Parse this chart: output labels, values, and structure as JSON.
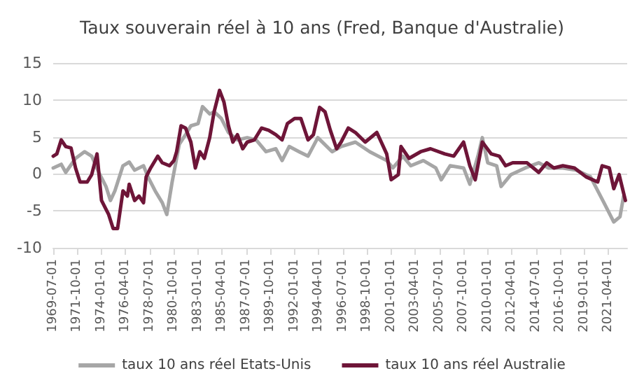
{
  "chart_data": {
    "type": "line",
    "title": "Taux souverain réel à 10 ans (Fred, Banque d'Australie)",
    "series": [
      {
        "name": "taux 10 ans réel Etats-Unis",
        "color": "#a6a6a6",
        "x": [
          "1969-07",
          "1970-04",
          "1970-09",
          "1971-08",
          "1972-06",
          "1973-02",
          "1973-10",
          "1974-06",
          "1974-11",
          "1975-04",
          "1976-01",
          "1976-08",
          "1977-02",
          "1977-12",
          "1978-05",
          "1979-01",
          "1979-09",
          "1980-02",
          "1980-08",
          "1981-04",
          "1981-11",
          "1982-05",
          "1983-01",
          "1983-06",
          "1984-02",
          "1984-07",
          "1985-03",
          "1985-11",
          "1986-09",
          "1987-08",
          "1988-06",
          "1989-05",
          "1990-04",
          "1990-11",
          "1991-07",
          "1992-06",
          "1993-04",
          "1994-03",
          "1995-07",
          "1996-05",
          "1997-09",
          "1999-01",
          "2000-08",
          "2001-03",
          "2002-02",
          "2002-11",
          "2004-01",
          "2005-03",
          "2005-09",
          "2006-07",
          "2007-10",
          "2008-05",
          "2009-02",
          "2009-07",
          "2010-01",
          "2010-11",
          "2011-04",
          "2012-03",
          "2013-07",
          "2014-10",
          "2015-09",
          "2017-01",
          "2018-04",
          "2019-08",
          "2020-11",
          "2021-10",
          "2022-05",
          "2022-09"
        ],
        "values": [
          0.8,
          1.3,
          0.2,
          2.1,
          3.0,
          2.4,
          0.2,
          -1.7,
          -3.6,
          -2.3,
          1.1,
          1.6,
          0.5,
          1.1,
          -0.4,
          -2.3,
          -3.9,
          -5.5,
          -1.1,
          4.0,
          5.3,
          6.5,
          6.8,
          9.1,
          8.1,
          8.4,
          7.5,
          5.6,
          4.6,
          4.9,
          4.6,
          3.0,
          3.4,
          1.8,
          3.7,
          3.0,
          2.4,
          4.9,
          3.0,
          3.7,
          4.3,
          3.0,
          1.8,
          0.8,
          2.4,
          1.1,
          1.8,
          0.8,
          -0.8,
          1.1,
          0.8,
          -1.4,
          2.4,
          4.9,
          1.5,
          1.1,
          -1.7,
          -0.1,
          0.8,
          1.5,
          0.8,
          0.8,
          0.5,
          -0.4,
          -3.9,
          -6.5,
          -5.8,
          -3.0
        ]
      },
      {
        "name": "taux 10 ans réel Australie",
        "color": "#6e1538",
        "x": [
          "1969-07",
          "1969-11",
          "1970-04",
          "1970-09",
          "1971-03",
          "1971-08",
          "1972-01",
          "1972-09",
          "1973-02",
          "1973-08",
          "1974-01",
          "1974-09",
          "1975-02",
          "1975-07",
          "1976-01",
          "1976-06",
          "1976-08",
          "1977-02",
          "1977-07",
          "1977-12",
          "1978-03",
          "1978-08",
          "1979-04",
          "1979-09",
          "1980-05",
          "1980-10",
          "1981-01",
          "1981-06",
          "1981-11",
          "1982-05",
          "1982-10",
          "1983-03",
          "1983-08",
          "1984-02",
          "1984-07",
          "1985-01",
          "1985-06",
          "1985-11",
          "1986-04",
          "1986-09",
          "1987-03",
          "1987-08",
          "1988-04",
          "1988-12",
          "1989-08",
          "1990-04",
          "1990-11",
          "1991-05",
          "1992-01",
          "1992-08",
          "1993-04",
          "1993-10",
          "1994-05",
          "1994-11",
          "1995-05",
          "1995-12",
          "1996-05",
          "1997-01",
          "1997-09",
          "1998-08",
          "1999-09",
          "2000-08",
          "2001-01",
          "2001-09",
          "2001-12",
          "2002-09",
          "2003-10",
          "2004-09",
          "2006-01",
          "2006-11",
          "2007-10",
          "2008-05",
          "2008-11",
          "2009-07",
          "2010-05",
          "2011-02",
          "2011-09",
          "2012-05",
          "2013-09",
          "2014-10",
          "2015-07",
          "2016-03",
          "2017-01",
          "2018-02",
          "2019-03",
          "2020-04",
          "2020-09",
          "2021-05",
          "2021-10",
          "2022-04",
          "2022-11"
        ],
        "values": [
          2.4,
          2.7,
          4.6,
          3.7,
          3.5,
          0.8,
          -1.1,
          -1.1,
          -0.1,
          2.7,
          -3.6,
          -5.5,
          -7.4,
          -7.4,
          -2.3,
          -3.0,
          -1.4,
          -3.6,
          -3.0,
          -3.9,
          -0.4,
          0.8,
          2.4,
          1.5,
          1.1,
          1.8,
          3.0,
          6.5,
          6.2,
          4.3,
          0.8,
          3.0,
          2.1,
          4.9,
          8.4,
          11.3,
          9.7,
          6.5,
          4.3,
          5.3,
          3.4,
          4.3,
          4.6,
          6.2,
          5.9,
          5.3,
          4.6,
          6.8,
          7.5,
          7.5,
          4.6,
          5.3,
          9.0,
          8.4,
          5.9,
          3.4,
          4.3,
          6.2,
          5.6,
          4.3,
          5.6,
          2.7,
          -0.8,
          -0.1,
          3.7,
          2.1,
          3.0,
          3.4,
          2.7,
          2.4,
          4.3,
          1.1,
          -0.8,
          4.3,
          2.7,
          2.4,
          1.1,
          1.5,
          1.5,
          0.2,
          1.5,
          0.8,
          1.1,
          0.8,
          -0.4,
          -1.1,
          1.1,
          0.8,
          -2.0,
          -0.1,
          -3.6
        ]
      }
    ],
    "ylim": [
      -10,
      15
    ],
    "yticks": [
      -10,
      -5,
      0,
      5,
      10,
      15
    ],
    "xlim": [
      "1969-07-01",
      "2023-01-01"
    ],
    "xticks": [
      "1969-07-01",
      "1971-10-01",
      "1974-01-01",
      "1976-04-01",
      "1978-07-01",
      "1980-10-01",
      "1983-01-01",
      "1985-04-01",
      "1987-07-01",
      "1989-10-01",
      "1992-01-01",
      "1994-04-01",
      "1996-07-01",
      "1998-10-01",
      "2001-01-01",
      "2003-04-01",
      "2005-07-01",
      "2007-10-01",
      "2010-01-01",
      "2012-04-01",
      "2014-07-01",
      "2016-10-01",
      "2019-01-01",
      "2021-04-01"
    ],
    "grid": "y",
    "legend": "bottom",
    "marker": "none",
    "line_style": "solid"
  }
}
